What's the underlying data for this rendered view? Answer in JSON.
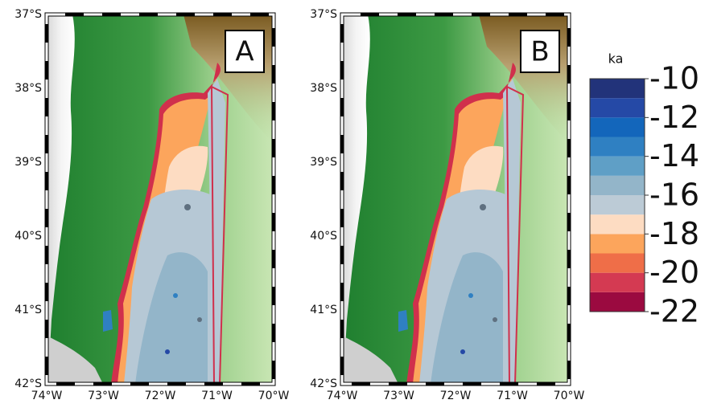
{
  "panels": [
    {
      "label": "A"
    },
    {
      "label": "B"
    }
  ],
  "lat_ticks": [
    {
      "value": -37,
      "label": "37°S"
    },
    {
      "value": -38,
      "label": "38°S"
    },
    {
      "value": -39,
      "label": "39°S"
    },
    {
      "value": -40,
      "label": "40°S"
    },
    {
      "value": -41,
      "label": "41°S"
    },
    {
      "value": -42,
      "label": "42°S"
    }
  ],
  "lon_ticks": [
    {
      "value": -74,
      "label": "74°W"
    },
    {
      "value": -73,
      "label": "73°W"
    },
    {
      "value": -72,
      "label": "72°W"
    },
    {
      "value": -71,
      "label": "71°W"
    },
    {
      "value": -70,
      "label": "70°W"
    }
  ],
  "colorbar": {
    "label": "ka",
    "ticks": [
      -10,
      -12,
      -14,
      -16,
      -18,
      -20,
      -22
    ],
    "levels": [
      -22,
      -21,
      -20,
      -19,
      -18,
      -17,
      -16,
      -15,
      -14,
      -13,
      -12,
      -11,
      -10
    ],
    "colors": [
      "#9b0a40",
      "#d43a52",
      "#ef6e48",
      "#fca55c",
      "#fddcc2",
      "#bccbd6",
      "#93b5c9",
      "#5f9fc6",
      "#2f80c2",
      "#1366bb",
      "#2549a6",
      "#22337a"
    ]
  }
}
